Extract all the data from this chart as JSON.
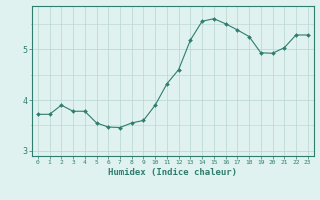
{
  "x": [
    0,
    1,
    2,
    3,
    4,
    5,
    6,
    7,
    8,
    9,
    10,
    11,
    12,
    13,
    14,
    15,
    16,
    17,
    18,
    19,
    20,
    21,
    22,
    23
  ],
  "y": [
    3.72,
    3.72,
    3.9,
    3.78,
    3.78,
    3.55,
    3.47,
    3.46,
    3.55,
    3.6,
    3.9,
    4.32,
    4.6,
    5.18,
    5.55,
    5.6,
    5.5,
    5.38,
    5.25,
    4.93,
    4.92,
    5.03,
    5.28,
    5.28
  ],
  "line_color": "#2e7d6e",
  "marker": "D",
  "marker_size": 2.0,
  "bg_color": "#dff2f0",
  "grid_color": "#b8d4d0",
  "tick_color": "#2e7d6e",
  "xlabel": "Humidex (Indice chaleur)",
  "xlabel_fontsize": 6.5,
  "ylabel_ticks": [
    3,
    4,
    5
  ],
  "ylim": [
    2.9,
    5.85
  ],
  "xlim": [
    -0.5,
    23.5
  ]
}
